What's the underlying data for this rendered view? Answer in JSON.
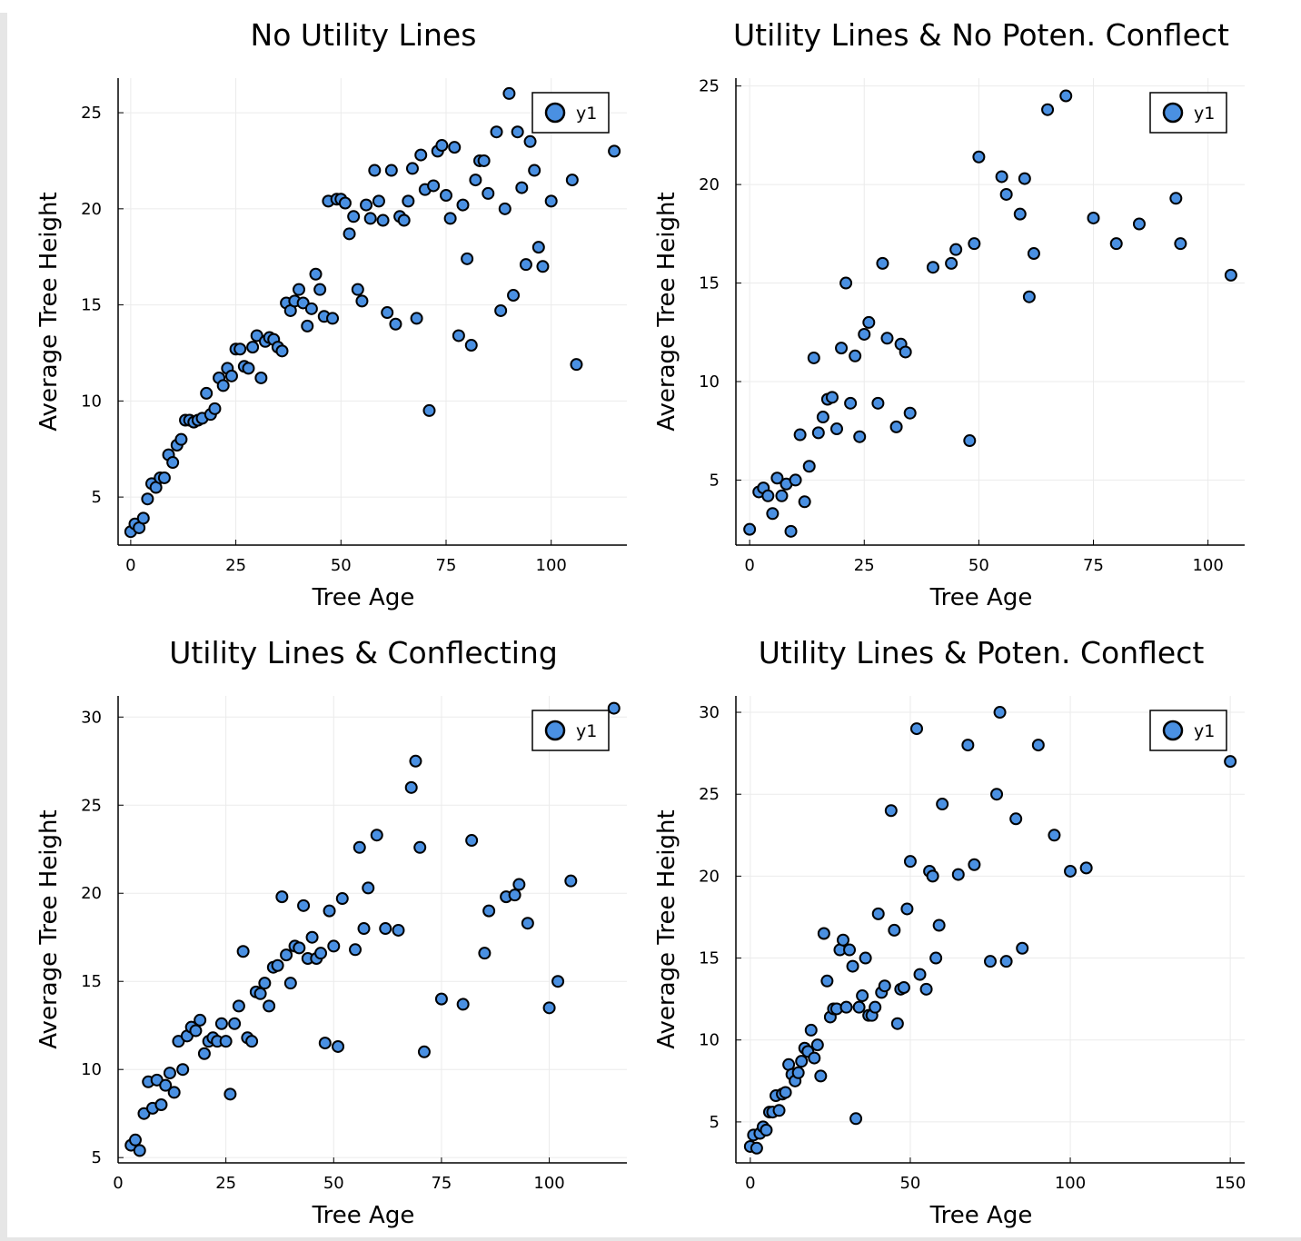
{
  "chart_data": [
    {
      "type": "scatter",
      "title": "No Utility Lines",
      "xlabel": "Tree Age",
      "ylabel": "Average Tree Height",
      "xlim": [
        -3,
        118
      ],
      "ylim": [
        2.5,
        26.8
      ],
      "xticks": [
        0,
        25,
        50,
        75,
        100
      ],
      "yticks": [
        5,
        10,
        15,
        20,
        25
      ],
      "grid": true,
      "legend_position": "top-right",
      "series": [
        {
          "name": "y1",
          "color": "#4a90e2",
          "x": [
            0,
            1,
            2,
            3,
            4,
            5,
            6,
            7,
            8,
            9,
            10,
            11,
            12,
            13,
            14,
            15,
            16,
            17,
            18,
            19,
            20,
            21,
            22,
            23,
            24,
            25,
            26,
            27,
            28,
            29,
            30,
            31,
            32,
            33,
            34,
            35,
            36,
            37,
            38,
            39,
            40,
            41,
            42,
            43,
            44,
            45,
            46,
            47,
            48,
            49,
            50,
            51,
            52,
            53,
            54,
            55,
            56,
            57,
            58,
            59,
            60,
            61,
            62,
            63,
            64,
            65,
            66,
            67,
            68,
            69,
            70,
            71,
            72,
            73,
            74,
            75,
            76,
            77,
            78,
            79,
            80,
            81,
            82,
            83,
            84,
            85,
            87,
            88,
            89,
            90,
            91,
            92,
            93,
            94,
            95,
            96,
            97,
            98,
            100,
            105,
            106,
            115
          ],
          "y": [
            3.2,
            3.6,
            3.4,
            3.9,
            4.9,
            5.7,
            5.5,
            6.0,
            6.0,
            7.2,
            6.8,
            7.7,
            8.0,
            9.0,
            9.0,
            8.9,
            9.0,
            9.1,
            10.4,
            9.3,
            9.6,
            11.2,
            10.8,
            11.7,
            11.3,
            12.7,
            12.7,
            11.8,
            11.7,
            12.8,
            13.4,
            11.2,
            13.1,
            13.3,
            13.2,
            12.8,
            12.6,
            15.1,
            14.7,
            15.2,
            15.8,
            15.1,
            13.9,
            14.8,
            16.6,
            15.8,
            14.4,
            20.4,
            14.3,
            20.5,
            20.5,
            20.3,
            18.7,
            19.6,
            15.8,
            15.2,
            20.2,
            19.5,
            22.0,
            20.4,
            19.4,
            14.6,
            22.0,
            14.0,
            19.6,
            19.4,
            20.4,
            22.1,
            14.3,
            22.8,
            21.0,
            9.5,
            21.2,
            23.0,
            23.3,
            20.7,
            19.5,
            23.2,
            13.4,
            20.2,
            17.4,
            12.9,
            21.5,
            22.5,
            22.5,
            20.8,
            24.0,
            14.7,
            20.0,
            26.0,
            15.5,
            24.0,
            21.1,
            17.1,
            23.5,
            22.0,
            18.0,
            17.0,
            20.4,
            21.5,
            11.9,
            23.0
          ]
        }
      ]
    },
    {
      "type": "scatter",
      "title": "Utility Lines & No Poten. Conflect",
      "xlabel": "Tree Age",
      "ylabel": "Average Tree Height",
      "xlim": [
        -3,
        108
      ],
      "ylim": [
        1.7,
        25.4
      ],
      "xticks": [
        0,
        25,
        50,
        75,
        100
      ],
      "yticks": [
        5,
        10,
        15,
        20,
        25
      ],
      "grid": true,
      "legend_position": "top-right",
      "series": [
        {
          "name": "y1",
          "color": "#4a90e2",
          "x": [
            0,
            2,
            3,
            4,
            5,
            6,
            7,
            8,
            9,
            10,
            11,
            12,
            13,
            14,
            15,
            16,
            17,
            18,
            19,
            20,
            21,
            22,
            23,
            24,
            25,
            26,
            28,
            29,
            30,
            32,
            33,
            34,
            35,
            40,
            44,
            45,
            48,
            49,
            50,
            55,
            56,
            59,
            60,
            61,
            62,
            65,
            69,
            75,
            80,
            85,
            93,
            94,
            105
          ],
          "y": [
            2.5,
            4.4,
            4.6,
            4.2,
            3.3,
            5.1,
            4.2,
            4.8,
            2.4,
            5.0,
            7.3,
            3.9,
            5.7,
            11.2,
            7.4,
            8.2,
            9.1,
            9.2,
            7.6,
            11.7,
            15.0,
            8.9,
            11.3,
            7.2,
            12.4,
            13.0,
            8.9,
            16.0,
            12.2,
            7.7,
            11.9,
            11.5,
            8.4,
            15.8,
            16.0,
            16.7,
            7.0,
            17.0,
            21.4,
            20.4,
            19.5,
            18.5,
            20.3,
            14.3,
            16.5,
            23.8,
            24.5,
            18.3,
            17.0,
            18.0,
            19.3,
            17.0,
            15.4
          ]
        }
      ]
    },
    {
      "type": "scatter",
      "title": "Utility Lines & Conflecting",
      "xlabel": "Tree Age",
      "ylabel": "Average Tree Height",
      "xlim": [
        0,
        118
      ],
      "ylim": [
        4.7,
        31.2
      ],
      "xticks": [
        0,
        25,
        50,
        75,
        100
      ],
      "yticks": [
        5,
        10,
        15,
        20,
        25,
        30
      ],
      "grid": true,
      "legend_position": "top-right",
      "series": [
        {
          "name": "y1",
          "color": "#4a90e2",
          "x": [
            3,
            4,
            5,
            6,
            7,
            8,
            9,
            10,
            11,
            12,
            13,
            14,
            15,
            16,
            17,
            18,
            19,
            20,
            21,
            22,
            23,
            24,
            25,
            26,
            27,
            28,
            29,
            30,
            31,
            32,
            33,
            34,
            35,
            36,
            37,
            38,
            39,
            40,
            41,
            42,
            43,
            44,
            45,
            46,
            47,
            48,
            49,
            50,
            51,
            52,
            55,
            56,
            57,
            58,
            60,
            62,
            65,
            68,
            69,
            70,
            71,
            75,
            80,
            82,
            85,
            86,
            90,
            92,
            93,
            95,
            100,
            102,
            105,
            115
          ],
          "y": [
            5.7,
            6.0,
            5.4,
            7.5,
            9.3,
            7.8,
            9.4,
            8.0,
            9.1,
            9.8,
            8.7,
            11.6,
            10.0,
            11.9,
            12.4,
            12.2,
            12.8,
            10.9,
            11.6,
            11.8,
            11.6,
            12.6,
            11.6,
            8.6,
            12.6,
            13.6,
            16.7,
            11.8,
            11.6,
            14.4,
            14.3,
            14.9,
            13.6,
            15.8,
            15.9,
            19.8,
            16.5,
            14.9,
            17.0,
            16.9,
            19.3,
            16.3,
            17.5,
            16.3,
            16.6,
            11.5,
            19.0,
            17.0,
            11.3,
            19.7,
            16.8,
            22.6,
            18.0,
            20.3,
            23.3,
            18.0,
            17.9,
            26.0,
            27.5,
            22.6,
            11.0,
            14.0,
            13.7,
            23.0,
            16.6,
            19.0,
            19.8,
            19.9,
            20.5,
            18.3,
            13.5,
            15.0,
            20.7,
            30.5
          ]
        }
      ]
    },
    {
      "type": "scatter",
      "title": "Utility Lines & Poten. Conflect",
      "xlabel": "Tree Age",
      "ylabel": "Average Tree Height",
      "xlim": [
        -4.5,
        154.5
      ],
      "ylim": [
        2.5,
        31.0
      ],
      "xticks": [
        0,
        50,
        100,
        150
      ],
      "yticks": [
        5,
        10,
        15,
        20,
        25,
        30
      ],
      "grid": true,
      "legend_position": "top-right",
      "series": [
        {
          "name": "y1",
          "color": "#4a90e2",
          "x": [
            0,
            1,
            2,
            3,
            4,
            5,
            6,
            7,
            8,
            9,
            10,
            11,
            12,
            13,
            14,
            15,
            16,
            17,
            18,
            19,
            20,
            21,
            22,
            23,
            24,
            25,
            26,
            27,
            28,
            29,
            30,
            31,
            32,
            33,
            34,
            35,
            36,
            37,
            38,
            39,
            40,
            41,
            42,
            44,
            45,
            46,
            47,
            48,
            49,
            50,
            52,
            53,
            55,
            56,
            57,
            58,
            59,
            60,
            65,
            68,
            70,
            75,
            77,
            78,
            80,
            83,
            85,
            90,
            95,
            100,
            105,
            150
          ],
          "y": [
            3.5,
            4.2,
            3.4,
            4.3,
            4.7,
            4.5,
            5.6,
            5.6,
            6.6,
            5.7,
            6.7,
            6.8,
            8.5,
            7.9,
            7.5,
            8.0,
            8.7,
            9.5,
            9.3,
            10.6,
            8.9,
            9.7,
            7.8,
            16.5,
            13.6,
            11.4,
            11.9,
            11.9,
            15.5,
            16.1,
            12.0,
            15.5,
            14.5,
            5.2,
            12.0,
            12.7,
            15.0,
            11.5,
            11.5,
            12.0,
            17.7,
            12.9,
            13.3,
            24.0,
            16.7,
            11.0,
            13.1,
            13.2,
            18.0,
            20.9,
            29.0,
            14.0,
            13.1,
            20.3,
            20.0,
            15.0,
            17.0,
            24.4,
            20.1,
            28.0,
            20.7,
            14.8,
            25.0,
            30.0,
            14.8,
            23.5,
            15.6,
            28.0,
            22.5,
            20.3,
            20.5,
            27.0
          ]
        }
      ]
    }
  ]
}
